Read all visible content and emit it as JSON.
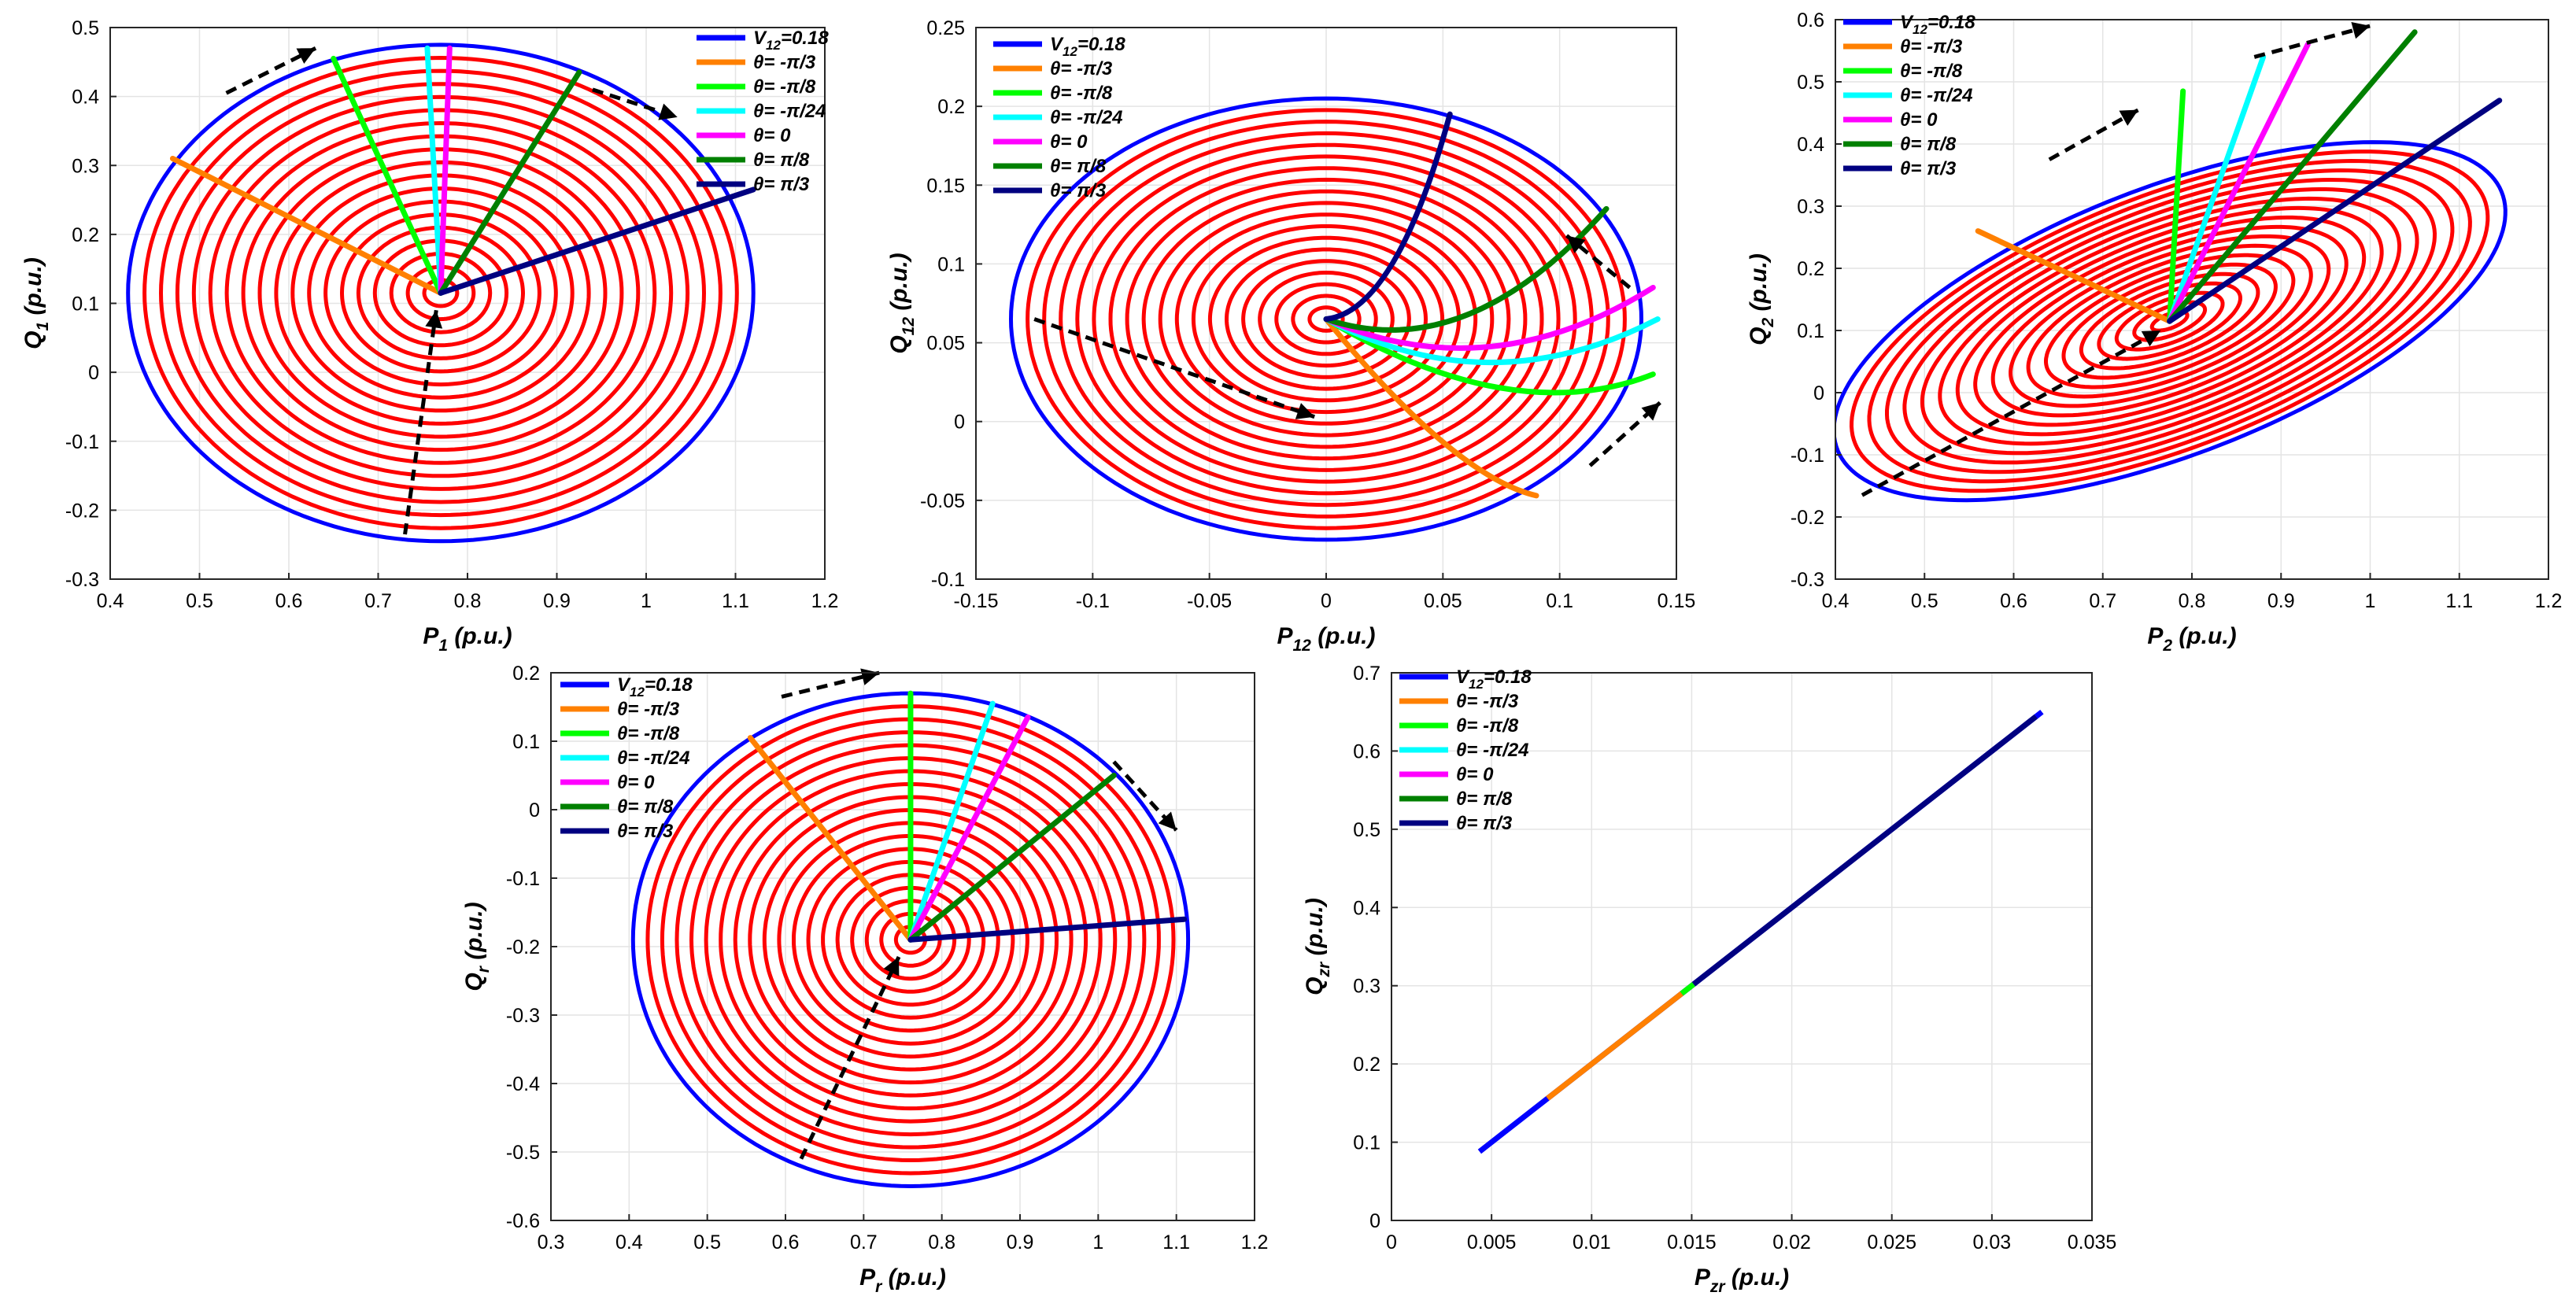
{
  "chart_data": [
    {
      "type": "line",
      "id": "p1q1",
      "xlabel": {
        "main": "P",
        "sub": "1",
        "unit": " (p.u.)"
      },
      "ylabel": {
        "main": "Q",
        "sub": "1",
        "unit": " (p.u.)"
      },
      "xlim": [
        0.4,
        1.2
      ],
      "ylim": [
        -0.3,
        0.5
      ],
      "xticks": [
        0.4,
        0.5,
        0.6,
        0.7,
        0.8,
        0.9,
        1,
        1.1,
        1.2
      ],
      "yticks": [
        -0.3,
        -0.2,
        -0.1,
        0,
        0.1,
        0.2,
        0.3,
        0.4,
        0.5
      ],
      "xtick_labels": [
        "0.4",
        "0.5",
        "0.6",
        "0.7",
        "0.8",
        "0.9",
        "1",
        "1.1",
        "1.2"
      ],
      "ytick_labels": [
        "-0.3",
        "-0.2",
        "-0.1",
        "0",
        "0.1",
        "0.2",
        "0.3",
        "0.4",
        "0.5"
      ],
      "center": [
        0.77,
        0.115
      ],
      "outer_rx": 0.35,
      "outer_ry": 0.36,
      "outer_rot_deg": 0,
      "num_circles": 19,
      "series": [
        {
          "name": "V12=0.18",
          "color": "#0000ff",
          "kind": "ellipse"
        },
        {
          "name": "θ= -π/3",
          "color": "#ff8000",
          "kind": "ray",
          "end": [
            0.47,
            0.31
          ]
        },
        {
          "name": "θ= -π/8",
          "color": "#00ff00",
          "kind": "ray",
          "end": [
            0.65,
            0.455
          ]
        },
        {
          "name": "θ= -π/24",
          "color": "#00ffff",
          "kind": "ray",
          "end": [
            0.755,
            0.47
          ]
        },
        {
          "name": "θ= 0",
          "color": "#ff00ff",
          "kind": "ray",
          "end": [
            0.78,
            0.47
          ]
        },
        {
          "name": "θ= π/8",
          "color": "#008000",
          "kind": "ray",
          "end": [
            0.925,
            0.435
          ]
        },
        {
          "name": "θ= π/3",
          "color": "#000080",
          "kind": "ray",
          "end": [
            1.12,
            0.265
          ]
        }
      ],
      "arrows": [
        {
          "from": [
            0.53,
            0.405
          ],
          "to": [
            0.63,
            0.47
          ]
        },
        {
          "from": [
            0.94,
            0.41
          ],
          "to": [
            1.035,
            0.37
          ]
        },
        {
          "from": [
            0.73,
            -0.235
          ],
          "to": [
            0.765,
            0.09
          ]
        }
      ],
      "legend": {
        "position": "top-right"
      }
    },
    {
      "type": "line",
      "id": "p12q12",
      "xlabel": {
        "main": "P",
        "sub": "12",
        "unit": " (p.u.)"
      },
      "ylabel": {
        "main": "Q",
        "sub": "12",
        "unit": " (p.u.)"
      },
      "xlim": [
        -0.15,
        0.15
      ],
      "ylim": [
        -0.1,
        0.25
      ],
      "xticks": [
        -0.15,
        -0.1,
        -0.05,
        0,
        0.05,
        0.1,
        0.15
      ],
      "yticks": [
        -0.1,
        -0.05,
        0,
        0.05,
        0.1,
        0.15,
        0.2,
        0.25
      ],
      "xtick_labels": [
        "-0.15",
        "-0.1",
        "-0.05",
        "0",
        "0.05",
        "0.1",
        "0.15"
      ],
      "ytick_labels": [
        "-0.1",
        "-0.05",
        "0",
        "0.05",
        "0.1",
        "0.15",
        "0.2",
        "0.25"
      ],
      "center": [
        0,
        0.065
      ],
      "outer_rx": 0.135,
      "outer_ry": 0.14,
      "outer_rot_deg": 0,
      "num_circles": 19,
      "series": [
        {
          "name": "V12=0.18",
          "color": "#0000ff",
          "kind": "ellipse"
        },
        {
          "name": "θ= -π/3",
          "color": "#ff8000",
          "kind": "ray",
          "end": [
            0.09,
            -0.047
          ],
          "bend": [
            0.055,
            -0.035
          ]
        },
        {
          "name": "θ= -π/8",
          "color": "#00ff00",
          "kind": "ray",
          "end": [
            0.14,
            0.03
          ],
          "bend": [
            0.08,
            -0.005
          ]
        },
        {
          "name": "θ= -π/24",
          "color": "#00ffff",
          "kind": "ray",
          "end": [
            0.142,
            0.065
          ],
          "bend": [
            0.07,
            0.01
          ]
        },
        {
          "name": "θ= 0",
          "color": "#ff00ff",
          "kind": "ray",
          "end": [
            0.14,
            0.085
          ],
          "bend": [
            0.07,
            0.02
          ]
        },
        {
          "name": "θ= π/8",
          "color": "#008000",
          "kind": "ray",
          "end": [
            0.12,
            0.135
          ],
          "bend": [
            0.06,
            0.035
          ]
        },
        {
          "name": "θ= π/3",
          "color": "#000080",
          "kind": "ray",
          "end": [
            0.053,
            0.195
          ],
          "bend": [
            0.03,
            0.07
          ]
        }
      ],
      "arrows": [
        {
          "from": [
            -0.125,
            0.065
          ],
          "to": [
            -0.005,
            0.003
          ]
        },
        {
          "from": [
            0.13,
            0.085
          ],
          "to": [
            0.103,
            0.118
          ],
          "dir": "up-left"
        },
        {
          "from": [
            0.113,
            -0.028
          ],
          "to": [
            0.143,
            0.012
          ]
        }
      ],
      "legend": {
        "position": "top-left"
      }
    },
    {
      "type": "line",
      "id": "p2q2",
      "xlabel": {
        "main": "P",
        "sub": "2",
        "unit": " (p.u.)"
      },
      "ylabel": {
        "main": "Q",
        "sub": "2",
        "unit": " (p.u.)"
      },
      "xlim": [
        0.4,
        1.2
      ],
      "ylim": [
        -0.3,
        0.6
      ],
      "xticks": [
        0.4,
        0.5,
        0.6,
        0.7,
        0.8,
        0.9,
        1,
        1.1,
        1.2
      ],
      "yticks": [
        -0.3,
        -0.2,
        -0.1,
        0,
        0.1,
        0.2,
        0.3,
        0.4,
        0.5,
        0.6
      ],
      "xtick_labels": [
        "0.4",
        "0.5",
        "0.6",
        "0.7",
        "0.8",
        "0.9",
        "1",
        "1.1",
        "1.2"
      ],
      "ytick_labels": [
        "-0.3",
        "-0.2",
        "-0.1",
        "0",
        "0.1",
        "0.2",
        "0.3",
        "0.4",
        "0.5",
        "0.6"
      ],
      "center": [
        0.775,
        0.115
      ],
      "outer_rx": 0.43,
      "outer_ry": 0.2,
      "outer_rot_deg": 33,
      "num_circles": 19,
      "series": [
        {
          "name": "V12=0.18",
          "color": "#0000ff",
          "kind": "ellipse"
        },
        {
          "name": "θ= -π/3",
          "color": "#ff8000",
          "kind": "ray",
          "end": [
            0.56,
            0.26
          ]
        },
        {
          "name": "θ= -π/8",
          "color": "#00ff00",
          "kind": "ray",
          "end": [
            0.79,
            0.485
          ]
        },
        {
          "name": "θ= -π/24",
          "color": "#00ffff",
          "kind": "ray",
          "end": [
            0.88,
            0.54
          ]
        },
        {
          "name": "θ= 0",
          "color": "#ff00ff",
          "kind": "ray",
          "end": [
            0.93,
            0.56
          ]
        },
        {
          "name": "θ= π/8",
          "color": "#008000",
          "kind": "ray",
          "end": [
            1.05,
            0.58
          ]
        },
        {
          "name": "θ= π/3",
          "color": "#000080",
          "kind": "ray",
          "end": [
            1.145,
            0.47
          ]
        }
      ],
      "arrows": [
        {
          "from": [
            0.64,
            0.375
          ],
          "to": [
            0.74,
            0.455
          ]
        },
        {
          "from": [
            0.87,
            0.54
          ],
          "to": [
            1.0,
            0.59
          ]
        },
        {
          "from": [
            0.43,
            -0.165
          ],
          "to": [
            0.765,
            0.1
          ]
        }
      ],
      "legend": {
        "position": "top-left"
      }
    },
    {
      "type": "line",
      "id": "prqr",
      "xlabel": {
        "main": "P",
        "sub": "r",
        "unit": " (p.u.)"
      },
      "ylabel": {
        "main": "Q",
        "sub": "r",
        "unit": " (p.u.)"
      },
      "xlim": [
        0.3,
        1.2
      ],
      "ylim": [
        -0.6,
        0.2
      ],
      "xticks": [
        0.3,
        0.4,
        0.5,
        0.6,
        0.7,
        0.8,
        0.9,
        1,
        1.1,
        1.2
      ],
      "yticks": [
        -0.6,
        -0.5,
        -0.4,
        -0.3,
        -0.2,
        -0.1,
        0,
        0.1,
        0.2
      ],
      "xtick_labels": [
        "0.3",
        "0.4",
        "0.5",
        "0.6",
        "0.7",
        "0.8",
        "0.9",
        "1",
        "1.1",
        "1.2"
      ],
      "ytick_labels": [
        "-0.6",
        "-0.5",
        "-0.4",
        "-0.3",
        "-0.2",
        "-0.1",
        "0",
        "0.1",
        "0.2"
      ],
      "center": [
        0.76,
        -0.19
      ],
      "outer_rx": 0.355,
      "outer_ry": 0.36,
      "outer_rot_deg": 0,
      "num_circles": 19,
      "series": [
        {
          "name": "V12=0.18",
          "color": "#0000ff",
          "kind": "ellipse"
        },
        {
          "name": "θ= -π/3",
          "color": "#ff8000",
          "kind": "ray",
          "end": [
            0.555,
            0.105
          ]
        },
        {
          "name": "θ= -π/8",
          "color": "#00ff00",
          "kind": "ray",
          "end": [
            0.76,
            0.17
          ]
        },
        {
          "name": "θ= -π/24",
          "color": "#00ffff",
          "kind": "ray",
          "end": [
            0.865,
            0.155
          ]
        },
        {
          "name": "θ= 0",
          "color": "#ff00ff",
          "kind": "ray",
          "end": [
            0.91,
            0.135
          ]
        },
        {
          "name": "θ= π/8",
          "color": "#008000",
          "kind": "ray",
          "end": [
            1.02,
            0.05
          ]
        },
        {
          "name": "θ= π/3",
          "color": "#000080",
          "kind": "ray",
          "end": [
            1.11,
            -0.16
          ]
        }
      ],
      "arrows": [
        {
          "from": [
            0.595,
            0.165
          ],
          "to": [
            0.72,
            0.2
          ]
        },
        {
          "from": [
            1.02,
            0.07
          ],
          "to": [
            1.1,
            -0.03
          ]
        },
        {
          "from": [
            0.62,
            -0.51
          ],
          "to": [
            0.745,
            -0.215
          ]
        }
      ],
      "legend": {
        "position": "top-left"
      }
    },
    {
      "type": "line",
      "id": "pzrqzr",
      "xlabel": {
        "main": "P",
        "sub": "zr",
        "unit": " (p.u.)"
      },
      "ylabel": {
        "main": "Q",
        "sub": "zr",
        "unit": " (p.u.)"
      },
      "xlim": [
        0,
        0.035
      ],
      "ylim": [
        0,
        0.7
      ],
      "xticks": [
        0,
        0.005,
        0.01,
        0.015,
        0.02,
        0.025,
        0.03,
        0.035
      ],
      "yticks": [
        0,
        0.1,
        0.2,
        0.3,
        0.4,
        0.5,
        0.6,
        0.7
      ],
      "xtick_labels": [
        "0",
        "0.005",
        "0.01",
        "0.015",
        "0.02",
        "0.025",
        "0.03",
        "0.035"
      ],
      "ytick_labels": [
        "0",
        "0.1",
        "0.2",
        "0.3",
        "0.4",
        "0.5",
        "0.6",
        "0.7"
      ],
      "series": [
        {
          "name": "V12=0.18",
          "color": "#0000ff",
          "kind": "segment",
          "from": [
            0.0044,
            0.088
          ],
          "to": [
            0.0325,
            0.65
          ]
        },
        {
          "name": "θ= -π/3",
          "color": "#ff8000",
          "kind": "segment",
          "from": [
            0.0078,
            0.156
          ],
          "to": [
            0.0145,
            0.29
          ]
        },
        {
          "name": "θ= -π/8",
          "color": "#00ff00",
          "kind": "segment",
          "from": [
            0.0145,
            0.29
          ],
          "to": [
            0.0151,
            0.302
          ]
        },
        {
          "name": "θ= -π/24",
          "color": "#00ffff",
          "kind": "none"
        },
        {
          "name": "θ= 0",
          "color": "#ff00ff",
          "kind": "none"
        },
        {
          "name": "θ= π/8",
          "color": "#008000",
          "kind": "none"
        },
        {
          "name": "θ= π/3",
          "color": "#000080",
          "kind": "segment",
          "from": [
            0.0151,
            0.302
          ],
          "to": [
            0.0322,
            0.644
          ]
        }
      ],
      "arrows": [],
      "legend": {
        "position": "top-left"
      }
    }
  ]
}
